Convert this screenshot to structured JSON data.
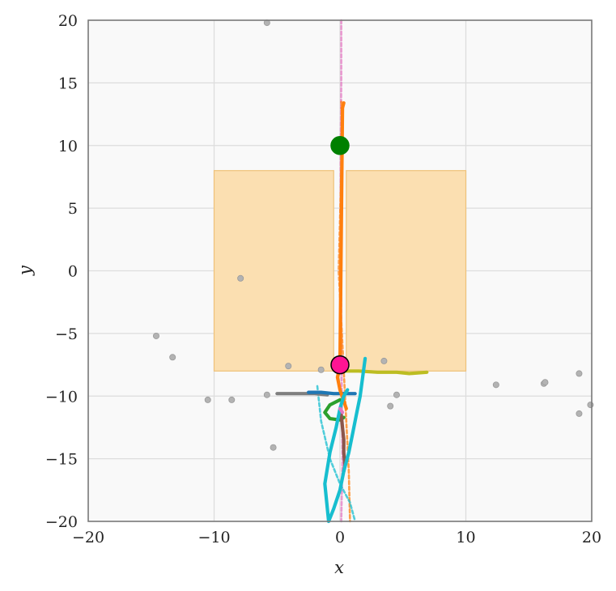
{
  "chart_data": {
    "type": "scatter",
    "title": "",
    "xlabel": "x",
    "ylabel": "y",
    "xlim": [
      -20,
      20
    ],
    "ylim": [
      -20,
      20
    ],
    "xticks": [
      -20,
      -10,
      0,
      10,
      20
    ],
    "yticks": [
      -20,
      -15,
      -10,
      -5,
      0,
      5,
      10,
      15,
      20
    ],
    "xtick_labels": [
      "−20",
      "−10",
      "0",
      "10",
      "20"
    ],
    "ytick_labels": [
      "−20",
      "−15",
      "−10",
      "−5",
      "0",
      "5",
      "10",
      "15",
      "20"
    ],
    "grid": true,
    "colors": {
      "background": "#f9f9f9",
      "grid": "#dddddd",
      "frame": "#7a7a7a",
      "region_fill": "#fbdfb1",
      "region_edge": "#efc27a",
      "obstacle_points": "#b3b3b3"
    },
    "regions": [
      {
        "x": [
          -10,
          -0.5
        ],
        "y": [
          -8,
          8
        ]
      },
      {
        "x": [
          0.5,
          10
        ],
        "y": [
          -8,
          8
        ]
      }
    ],
    "obstacles": [
      {
        "x": -5.8,
        "y": 19.8
      },
      {
        "x": -7.9,
        "y": -0.6
      },
      {
        "x": -14.6,
        "y": -5.2
      },
      {
        "x": -13.3,
        "y": -6.9
      },
      {
        "x": -10.5,
        "y": -10.3
      },
      {
        "x": -8.6,
        "y": -10.3
      },
      {
        "x": -5.8,
        "y": -9.9
      },
      {
        "x": -4.1,
        "y": -7.6
      },
      {
        "x": -5.3,
        "y": -14.1
      },
      {
        "x": -1.5,
        "y": -7.9
      },
      {
        "x": 3.5,
        "y": -7.2
      },
      {
        "x": 4.5,
        "y": -9.9
      },
      {
        "x": 4.0,
        "y": -10.8
      },
      {
        "x": 12.4,
        "y": -9.1
      },
      {
        "x": 16.2,
        "y": -9.0
      },
      {
        "x": 16.3,
        "y": -8.9
      },
      {
        "x": 19.0,
        "y": -8.2
      },
      {
        "x": 19.0,
        "y": -11.4
      },
      {
        "x": 19.9,
        "y": -10.7
      }
    ],
    "series": [
      {
        "color": "#e377c2",
        "dashed": true,
        "x": [
          0.1,
          0.1,
          0.05,
          0.05,
          0.1,
          0.1,
          0.15,
          0.2,
          0.1
        ],
        "y": [
          20,
          15,
          10,
          5,
          0,
          -5,
          -10,
          -15,
          -20
        ]
      },
      {
        "color": "#ff7f0e",
        "dashed": true,
        "x": [
          0.1,
          0.2,
          0.1,
          0.0,
          -0.1,
          0.1,
          0.3,
          0.5,
          0.7,
          0.8
        ],
        "y": [
          13.5,
          11,
          8,
          4,
          0,
          -4,
          -8,
          -12,
          -16,
          -20
        ]
      },
      {
        "color": "#17becf",
        "dashed": true,
        "x": [
          -1.8,
          -1.5,
          -0.8,
          0.0,
          0.8,
          1.2
        ],
        "y": [
          -9.2,
          -12,
          -15,
          -17,
          -18.5,
          -20
        ]
      },
      {
        "color": "#bcbd22",
        "x": [
          0.2,
          1.5,
          3.0,
          4.5,
          5.5,
          6.9
        ],
        "y": [
          -8.0,
          -8.0,
          -8.1,
          -8.1,
          -8.2,
          -8.1
        ]
      },
      {
        "color": "#7f7f7f",
        "x": [
          -5.0,
          -4.0,
          -3.0,
          -2.0,
          -1.0
        ],
        "y": [
          -9.8,
          -9.8,
          -9.8,
          -9.8,
          -9.9
        ]
      },
      {
        "color": "#1f77b4",
        "x": [
          -2.5,
          -1.5,
          -0.5,
          0.5,
          1.2
        ],
        "y": [
          -9.7,
          -9.7,
          -9.8,
          -9.8,
          -9.8
        ]
      },
      {
        "color": "#2ca02c",
        "x": [
          0.0,
          -0.8,
          -1.2,
          -0.8,
          0.0,
          0.3
        ],
        "y": [
          -10.3,
          -10.7,
          -11.3,
          -11.8,
          -11.9,
          -11.7
        ]
      },
      {
        "color": "#ff7f0e",
        "x": [
          0.3,
          0.2,
          0.0,
          -0.2,
          0.0,
          0.3,
          0.5
        ],
        "y": [
          13.4,
          13.0,
          -7.6,
          -8.5,
          -9.5,
          -10.4,
          -11.0
        ]
      },
      {
        "color": "#8c564b",
        "x": [
          0.1,
          0.2,
          0.3,
          0.3,
          0.4,
          0.3
        ],
        "y": [
          -11.5,
          -12.5,
          -13.5,
          -14.5,
          -15.5,
          -16.0
        ]
      },
      {
        "color": "#17becf",
        "x": [
          2.0,
          1.8,
          1.6,
          1.3,
          1.0,
          0.7,
          0.3,
          0.0,
          -0.5,
          -0.9,
          -1.2,
          -0.8,
          -0.3,
          0.0,
          0.3,
          0.6
        ],
        "y": [
          -7.0,
          -8.5,
          -10.0,
          -11.5,
          -13.0,
          -14.5,
          -16.0,
          -17.5,
          -19.0,
          -20.0,
          -17.0,
          -14.5,
          -12.5,
          -11.0,
          -10.0,
          -9.5
        ]
      },
      {
        "color": "#e377c2",
        "x": [
          0.0,
          0.2
        ],
        "y": [
          -11.0,
          -11.3
        ]
      }
    ],
    "markers": [
      {
        "x": 0.0,
        "y": 10.0,
        "color": "#008000",
        "edge": "#008000"
      },
      {
        "x": 0.0,
        "y": -7.5,
        "color": "#ff1493",
        "edge": "#000000"
      }
    ]
  }
}
